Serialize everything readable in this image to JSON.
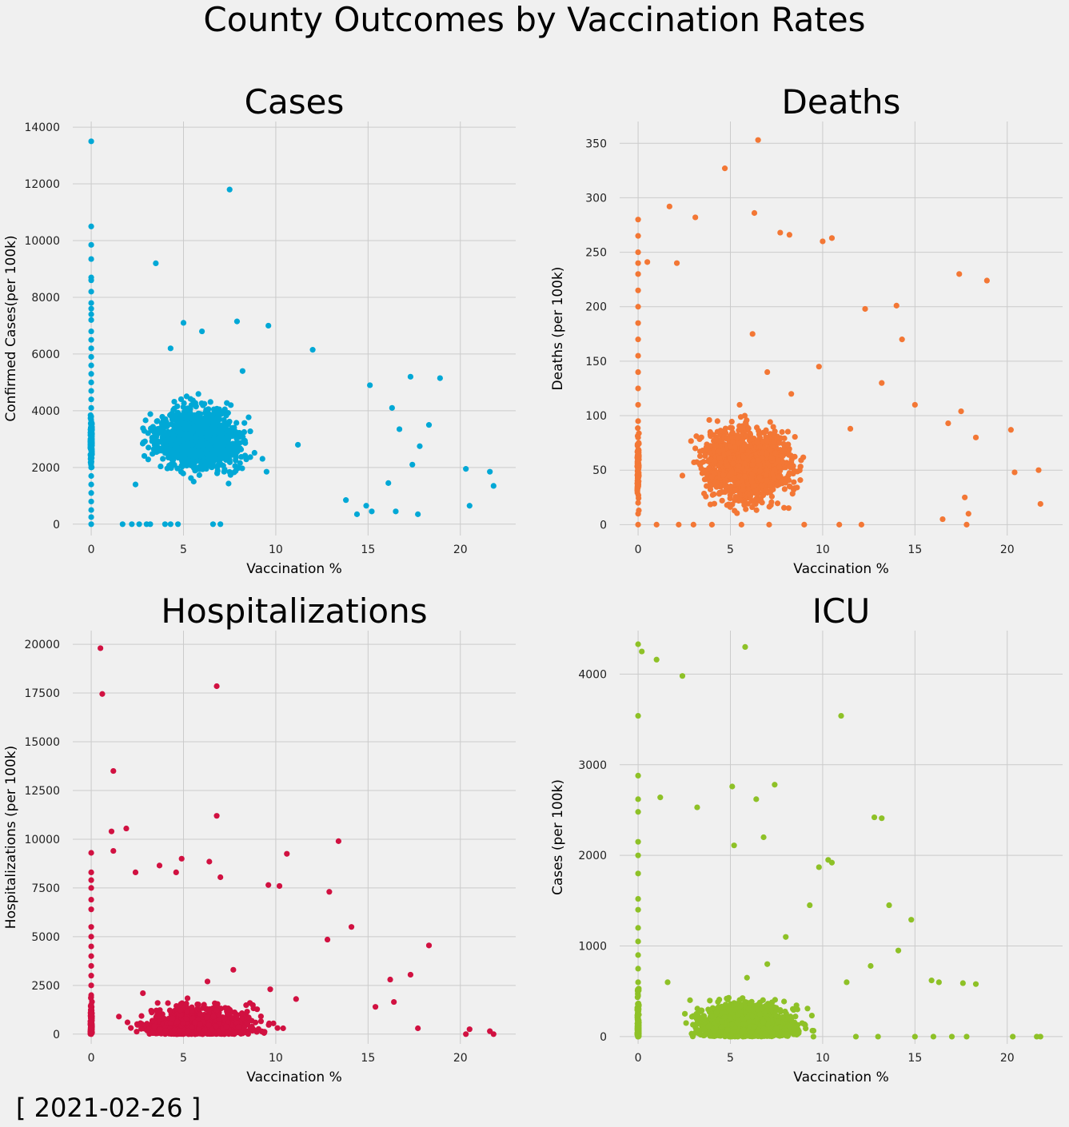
{
  "figure": {
    "suptitle": "County Outcomes by Vaccination Rates",
    "date_label": "[ 2021-02-26 ]",
    "background": "#f0f0f0",
    "grid": true
  },
  "chart_data": [
    {
      "type": "scatter",
      "title": "Cases",
      "xlabel": "Vaccination %",
      "ylabel": "Confirmed Cases(per 100k)",
      "color": "#00a8d6",
      "xlim": [
        -1,
        23
      ],
      "ylim": [
        -400,
        14200
      ],
      "xticks": [
        0,
        5,
        10,
        15,
        20
      ],
      "yticks": [
        0,
        2000,
        4000,
        6000,
        8000,
        10000,
        12000,
        14000
      ],
      "points": [
        [
          0,
          13500
        ],
        [
          0,
          10500
        ],
        [
          0,
          9850
        ],
        [
          0,
          9350
        ],
        [
          0,
          8700
        ],
        [
          0,
          8600
        ],
        [
          0,
          8200
        ],
        [
          0,
          7800
        ],
        [
          0,
          7600
        ],
        [
          0,
          7400
        ],
        [
          0,
          7200
        ],
        [
          0,
          6800
        ],
        [
          0,
          6500
        ],
        [
          0,
          6200
        ],
        [
          0,
          5900
        ],
        [
          0,
          5600
        ],
        [
          0,
          5300
        ],
        [
          0,
          5000
        ],
        [
          0,
          4700
        ],
        [
          0,
          4400
        ],
        [
          0,
          4100
        ],
        [
          0,
          3800
        ],
        [
          0,
          3500
        ],
        [
          0,
          3200
        ],
        [
          0,
          2900
        ],
        [
          0,
          2600
        ],
        [
          0,
          2300
        ],
        [
          0,
          2000
        ],
        [
          0,
          1700
        ],
        [
          0,
          1400
        ],
        [
          0,
          1100
        ],
        [
          0,
          800
        ],
        [
          0,
          500
        ],
        [
          0,
          250
        ],
        [
          0,
          0
        ],
        [
          7.5,
          11800
        ],
        [
          3.5,
          9200
        ],
        [
          9.6,
          7000
        ],
        [
          7.9,
          7150
        ],
        [
          5.0,
          7100
        ],
        [
          6.0,
          6800
        ],
        [
          12.0,
          6150
        ],
        [
          4.3,
          6200
        ],
        [
          18.9,
          5150
        ],
        [
          17.3,
          5200
        ],
        [
          15.1,
          4900
        ],
        [
          16.3,
          4100
        ],
        [
          16.7,
          3350
        ],
        [
          18.3,
          3500
        ],
        [
          17.8,
          2750
        ],
        [
          17.4,
          2100
        ],
        [
          20.3,
          1950
        ],
        [
          21.6,
          1850
        ],
        [
          21.8,
          1350
        ],
        [
          20.5,
          650
        ],
        [
          17.7,
          350
        ],
        [
          16.1,
          1450
        ],
        [
          15.2,
          450
        ],
        [
          16.5,
          450
        ],
        [
          14.9,
          650
        ],
        [
          14.4,
          350
        ],
        [
          13.8,
          850
        ],
        [
          1.7,
          0
        ],
        [
          2.2,
          0
        ],
        [
          2.6,
          0
        ],
        [
          3.0,
          0
        ],
        [
          3.2,
          0
        ],
        [
          4.0,
          0
        ],
        [
          4.3,
          0
        ],
        [
          4.7,
          0
        ],
        [
          6.6,
          0
        ],
        [
          7.0,
          0
        ],
        [
          9.5,
          1850
        ],
        [
          11.2,
          2800
        ],
        [
          8.2,
          5400
        ],
        [
          7.2,
          1850
        ],
        [
          6.4,
          3300
        ],
        [
          5.5,
          2250
        ],
        [
          4.7,
          3900
        ],
        [
          3.1,
          2700
        ],
        [
          2.4,
          1400
        ]
      ]
    },
    {
      "type": "scatter",
      "title": "Deaths",
      "xlabel": "Vaccination %",
      "ylabel": "Deaths (per 100k)",
      "color": "#f37735",
      "xlim": [
        -1,
        23
      ],
      "ylim": [
        -10,
        370
      ],
      "xticks": [
        0,
        5,
        10,
        15,
        20
      ],
      "yticks": [
        0,
        50,
        100,
        150,
        200,
        250,
        300,
        350
      ],
      "points": [
        [
          0,
          280
        ],
        [
          0,
          265
        ],
        [
          0,
          250
        ],
        [
          0,
          240
        ],
        [
          0,
          230
        ],
        [
          0,
          215
        ],
        [
          0,
          200
        ],
        [
          0,
          185
        ],
        [
          0,
          170
        ],
        [
          0,
          155
        ],
        [
          0,
          140
        ],
        [
          0,
          125
        ],
        [
          0,
          110
        ],
        [
          0,
          95
        ],
        [
          0,
          80
        ],
        [
          0,
          65
        ],
        [
          0,
          50
        ],
        [
          0,
          35
        ],
        [
          0,
          20
        ],
        [
          0,
          10
        ],
        [
          0,
          0
        ],
        [
          6.5,
          353
        ],
        [
          4.7,
          327
        ],
        [
          6.3,
          286
        ],
        [
          1.7,
          292
        ],
        [
          3.1,
          282
        ],
        [
          10.5,
          263
        ],
        [
          10.0,
          260
        ],
        [
          7.7,
          268
        ],
        [
          8.2,
          266
        ],
        [
          0.5,
          241
        ],
        [
          2.1,
          240
        ],
        [
          17.4,
          230
        ],
        [
          18.9,
          224
        ],
        [
          14.0,
          201
        ],
        [
          12.3,
          198
        ],
        [
          20.2,
          87
        ],
        [
          21.7,
          50
        ],
        [
          21.8,
          19
        ],
        [
          20.4,
          48
        ],
        [
          18.3,
          80
        ],
        [
          17.7,
          25
        ],
        [
          17.9,
          10
        ],
        [
          16.5,
          5
        ],
        [
          17.8,
          0
        ],
        [
          16.8,
          93
        ],
        [
          17.5,
          104
        ],
        [
          15.0,
          110
        ],
        [
          14.3,
          170
        ],
        [
          13.2,
          130
        ],
        [
          1.0,
          0
        ],
        [
          2.2,
          0
        ],
        [
          3.0,
          0
        ],
        [
          4.0,
          0
        ],
        [
          5.6,
          0
        ],
        [
          7.1,
          0
        ],
        [
          9.0,
          0
        ],
        [
          10.9,
          0
        ],
        [
          12.1,
          0
        ],
        [
          6.2,
          175
        ],
        [
          7.0,
          140
        ],
        [
          5.5,
          110
        ],
        [
          4.3,
          95
        ],
        [
          8.3,
          120
        ],
        [
          9.8,
          145
        ],
        [
          5.7,
          62
        ],
        [
          3.1,
          70
        ],
        [
          2.4,
          45
        ],
        [
          7.8,
          85
        ],
        [
          11.5,
          88
        ]
      ]
    },
    {
      "type": "scatter",
      "title": "Hospitalizations",
      "xlabel": "Vaccination %",
      "ylabel": "Hospitalizations (per 100k)",
      "color": "#d11141",
      "xlim": [
        -1,
        23
      ],
      "ylim": [
        -500,
        20700
      ],
      "xticks": [
        0,
        5,
        10,
        15,
        20
      ],
      "yticks": [
        0,
        2500,
        5000,
        7500,
        10000,
        12500,
        15000,
        17500,
        20000
      ],
      "points": [
        [
          0,
          9300
        ],
        [
          0,
          8300
        ],
        [
          0,
          7900
        ],
        [
          0,
          7500
        ],
        [
          0,
          6900
        ],
        [
          0,
          6400
        ],
        [
          0,
          5500
        ],
        [
          0,
          5000
        ],
        [
          0,
          4500
        ],
        [
          0,
          4000
        ],
        [
          0,
          3500
        ],
        [
          0,
          3000
        ],
        [
          0,
          2500
        ],
        [
          0,
          2000
        ],
        [
          0,
          1500
        ],
        [
          0,
          1000
        ],
        [
          0,
          600
        ],
        [
          0,
          300
        ],
        [
          0,
          100
        ],
        [
          0,
          0
        ],
        [
          0.5,
          19800
        ],
        [
          0.6,
          17450
        ],
        [
          6.8,
          17850
        ],
        [
          1.2,
          13500
        ],
        [
          6.8,
          11200
        ],
        [
          13.4,
          9900
        ],
        [
          1.1,
          10400
        ],
        [
          1.9,
          10550
        ],
        [
          1.2,
          9400
        ],
        [
          10.6,
          9250
        ],
        [
          4.9,
          9000
        ],
        [
          6.4,
          8850
        ],
        [
          4.6,
          8300
        ],
        [
          7.0,
          8050
        ],
        [
          3.7,
          8650
        ],
        [
          2.4,
          8300
        ],
        [
          18.3,
          4550
        ],
        [
          17.3,
          3050
        ],
        [
          16.2,
          2800
        ],
        [
          15.4,
          1400
        ],
        [
          16.4,
          1650
        ],
        [
          17.7,
          300
        ],
        [
          20.3,
          0
        ],
        [
          20.5,
          250
        ],
        [
          21.6,
          150
        ],
        [
          21.8,
          0
        ],
        [
          14.1,
          5500
        ],
        [
          12.9,
          7300
        ],
        [
          12.8,
          4850
        ],
        [
          10.2,
          7600
        ],
        [
          9.6,
          7650
        ],
        [
          11.1,
          1800
        ],
        [
          9.7,
          2300
        ],
        [
          8.6,
          1600
        ],
        [
          7.7,
          3300
        ],
        [
          6.3,
          2700
        ],
        [
          5.2,
          1200
        ],
        [
          4.4,
          800
        ],
        [
          3.6,
          1600
        ],
        [
          2.8,
          2100
        ],
        [
          1.5,
          900
        ],
        [
          5.9,
          500
        ],
        [
          7.3,
          400
        ],
        [
          8.9,
          600
        ],
        [
          10.4,
          300
        ]
      ]
    },
    {
      "type": "scatter",
      "title": "ICU",
      "xlabel": "Vaccination %",
      "ylabel": "Cases (per 100k)",
      "color": "#8ec127",
      "xlim": [
        -1,
        23
      ],
      "ylim": [
        -80,
        4480
      ],
      "xticks": [
        0,
        5,
        10,
        15,
        20
      ],
      "yticks": [
        0,
        1000,
        2000,
        3000,
        4000
      ],
      "points": [
        [
          0,
          4330
        ],
        [
          0.2,
          4250
        ],
        [
          1.0,
          4160
        ],
        [
          2.4,
          3980
        ],
        [
          5.8,
          4300
        ],
        [
          0,
          3540
        ],
        [
          11.0,
          3540
        ],
        [
          0,
          2880
        ],
        [
          0,
          2620
        ],
        [
          0,
          2480
        ],
        [
          0,
          2150
        ],
        [
          0,
          2000
        ],
        [
          0,
          1800
        ],
        [
          0,
          1520
        ],
        [
          0,
          1400
        ],
        [
          0,
          1200
        ],
        [
          0,
          1050
        ],
        [
          0,
          900
        ],
        [
          0,
          750
        ],
        [
          0,
          600
        ],
        [
          0,
          450
        ],
        [
          0,
          300
        ],
        [
          0,
          150
        ],
        [
          0,
          0
        ],
        [
          5.1,
          2760
        ],
        [
          7.4,
          2780
        ],
        [
          6.4,
          2620
        ],
        [
          1.2,
          2640
        ],
        [
          3.2,
          2530
        ],
        [
          12.8,
          2420
        ],
        [
          13.2,
          2410
        ],
        [
          6.8,
          2200
        ],
        [
          5.2,
          2110
        ],
        [
          10.3,
          1950
        ],
        [
          10.5,
          1920
        ],
        [
          9.8,
          1870
        ],
        [
          13.6,
          1450
        ],
        [
          14.8,
          1290
        ],
        [
          15.9,
          620
        ],
        [
          16.3,
          600
        ],
        [
          17.6,
          590
        ],
        [
          18.3,
          580
        ],
        [
          15.0,
          0
        ],
        [
          16.0,
          0
        ],
        [
          17.0,
          0
        ],
        [
          17.8,
          0
        ],
        [
          20.3,
          0
        ],
        [
          21.6,
          0
        ],
        [
          21.8,
          0
        ],
        [
          14.1,
          950
        ],
        [
          12.6,
          780
        ],
        [
          11.3,
          600
        ],
        [
          9.3,
          1450
        ],
        [
          8.0,
          1100
        ],
        [
          7.0,
          800
        ],
        [
          5.9,
          650
        ],
        [
          4.8,
          420
        ],
        [
          3.8,
          300
        ],
        [
          2.6,
          150
        ],
        [
          1.6,
          600
        ],
        [
          6.2,
          220
        ],
        [
          7.5,
          90
        ],
        [
          8.7,
          40
        ],
        [
          4.1,
          60
        ],
        [
          5.4,
          0
        ],
        [
          9.5,
          0
        ],
        [
          11.8,
          0
        ],
        [
          13.0,
          0
        ]
      ]
    }
  ]
}
